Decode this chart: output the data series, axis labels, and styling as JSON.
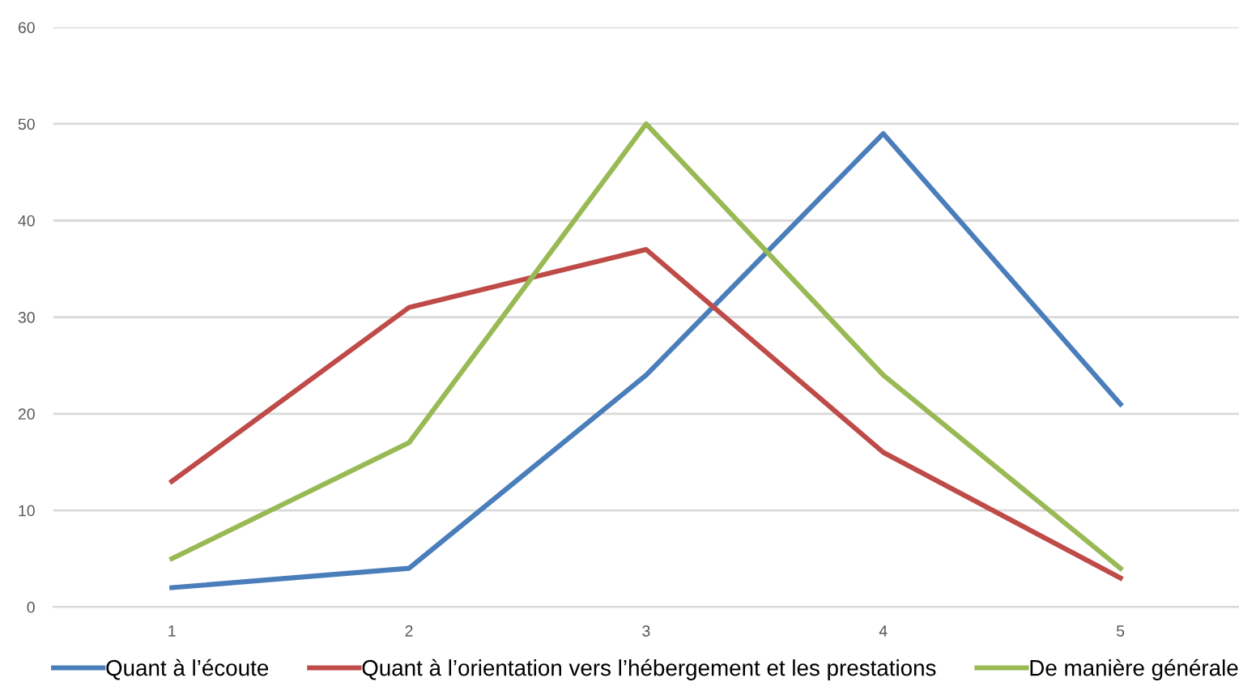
{
  "chart_data": {
    "type": "line",
    "categories": [
      "1",
      "2",
      "3",
      "4",
      "5"
    ],
    "series": [
      {
        "name": "Quant à l’écoute",
        "color": "#4a7ebb",
        "values": [
          2,
          4,
          24,
          49,
          21
        ]
      },
      {
        "name": "Quant à l’orientation vers l’hébergement et les prestations",
        "color": "#be4b48",
        "values": [
          13,
          31,
          37,
          16,
          3
        ]
      },
      {
        "name": "De manière générale",
        "color": "#98b954",
        "values": [
          5,
          17,
          50,
          24,
          4
        ]
      }
    ],
    "ylim": [
      0,
      60
    ],
    "yticks": [
      0,
      10,
      20,
      30,
      40,
      50,
      60
    ],
    "grid": "y",
    "legend": "bottom",
    "marker": "none",
    "line_style": "solid"
  }
}
